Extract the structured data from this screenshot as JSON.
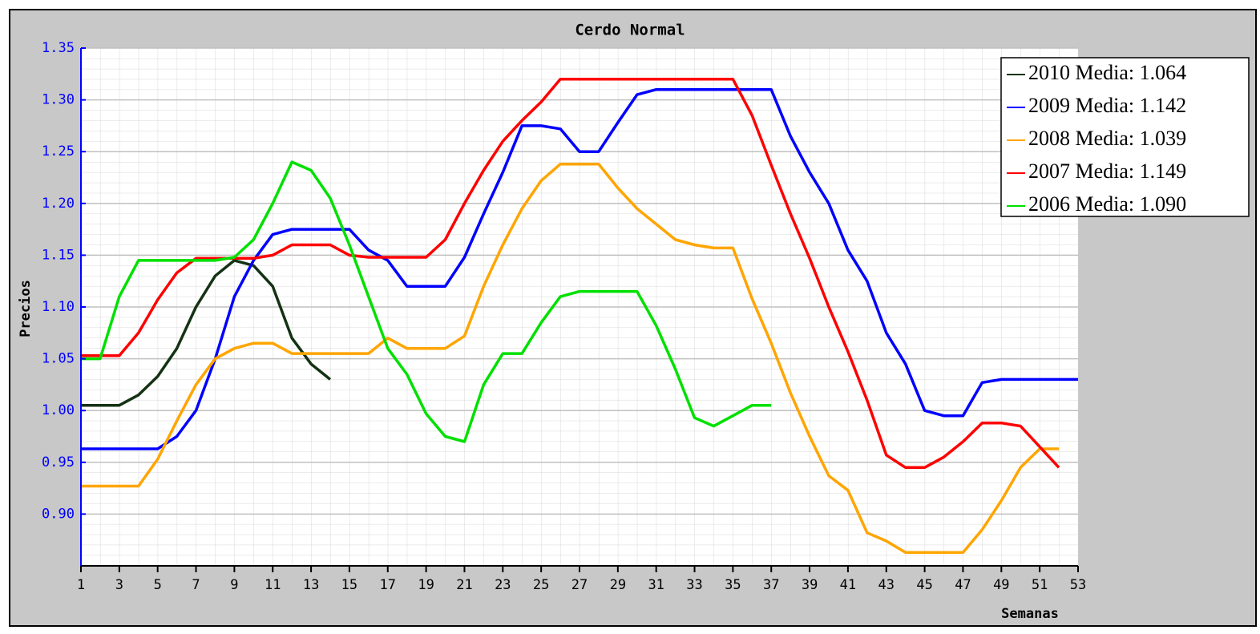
{
  "chart_data": {
    "type": "line",
    "title": "Cerdo Normal",
    "x_label": "Semanas",
    "y_label": "Precios",
    "x": [
      1,
      2,
      3,
      4,
      5,
      6,
      7,
      8,
      9,
      10,
      11,
      12,
      13,
      14,
      15,
      16,
      17,
      18,
      19,
      20,
      21,
      22,
      23,
      24,
      25,
      26,
      27,
      28,
      29,
      30,
      31,
      32,
      33,
      34,
      35,
      36,
      37,
      38,
      39,
      40,
      41,
      42,
      43,
      44,
      45,
      46,
      47,
      48,
      49,
      50,
      51,
      52,
      53
    ],
    "xlim": [
      1,
      53
    ],
    "xticks": [
      1,
      3,
      5,
      7,
      9,
      11,
      13,
      15,
      17,
      19,
      21,
      23,
      25,
      27,
      29,
      31,
      33,
      35,
      37,
      39,
      41,
      43,
      45,
      47,
      49,
      51,
      53
    ],
    "ylim": [
      0.85,
      1.35
    ],
    "yticks": [
      {
        "value": 0.9,
        "label": "0.90"
      },
      0.95,
      {
        "value": 1.0,
        "label": "1.00"
      },
      1.05,
      {
        "value": 1.1,
        "label": "1.10"
      },
      1.15,
      {
        "value": 1.2,
        "label": "1.20"
      },
      1.25,
      {
        "value": 1.3,
        "label": "1.30"
      },
      1.35
    ],
    "grid": true,
    "legend": "upper right",
    "series": [
      {
        "name": "2010 Media: 1.064",
        "color": "#143214",
        "values": [
          1.005,
          1.005,
          1.005,
          1.015,
          1.033,
          1.06,
          1.1,
          1.13,
          1.145,
          1.14,
          1.12,
          1.07,
          1.045,
          1.03,
          null,
          null,
          null,
          null,
          null,
          null,
          null,
          null,
          null,
          null,
          null,
          null,
          null,
          null,
          null,
          null,
          null,
          null,
          null,
          null,
          null,
          null,
          null,
          null,
          null,
          null,
          null,
          null,
          null,
          null,
          null,
          null,
          null,
          null,
          null,
          null,
          null,
          null,
          null
        ]
      },
      {
        "name": "2009 Media: 1.142",
        "color": "#0000ff",
        "values": [
          0.963,
          0.963,
          0.963,
          0.963,
          0.963,
          0.975,
          1.0,
          1.05,
          1.11,
          1.145,
          1.17,
          1.175,
          1.175,
          1.175,
          1.175,
          1.155,
          1.145,
          1.12,
          1.12,
          1.12,
          1.148,
          1.19,
          1.23,
          1.275,
          1.275,
          1.272,
          1.25,
          1.25,
          1.278,
          1.305,
          1.31,
          1.31,
          1.31,
          1.31,
          1.31,
          1.31,
          1.31,
          1.265,
          1.23,
          1.2,
          1.155,
          1.125,
          1.075,
          1.045,
          1.0,
          0.995,
          0.995,
          1.027,
          1.03,
          1.03,
          1.03,
          1.03,
          1.03
        ]
      },
      {
        "name": "2008 Media: 1.039",
        "color": "#ffa500",
        "values": [
          0.927,
          0.927,
          0.927,
          0.927,
          0.953,
          0.99,
          1.025,
          1.05,
          1.06,
          1.065,
          1.065,
          1.055,
          1.055,
          1.055,
          1.055,
          1.055,
          1.07,
          1.06,
          1.06,
          1.06,
          1.072,
          1.12,
          1.16,
          1.195,
          1.222,
          1.238,
          1.238,
          1.238,
          1.215,
          1.195,
          1.18,
          1.165,
          1.16,
          1.157,
          1.157,
          1.108,
          1.065,
          1.017,
          0.975,
          0.937,
          0.923,
          0.882,
          0.874,
          0.863,
          0.863,
          0.863,
          0.863,
          0.885,
          0.913,
          0.945,
          0.963,
          0.963,
          null
        ]
      },
      {
        "name": "2007 Media: 1.149",
        "color": "#ff0000",
        "values": [
          1.053,
          1.053,
          1.053,
          1.075,
          1.107,
          1.133,
          1.147,
          1.147,
          1.147,
          1.147,
          1.15,
          1.16,
          1.16,
          1.16,
          1.15,
          1.148,
          1.148,
          1.148,
          1.148,
          1.165,
          1.2,
          1.232,
          1.26,
          1.28,
          1.298,
          1.32,
          1.32,
          1.32,
          1.32,
          1.32,
          1.32,
          1.32,
          1.32,
          1.32,
          1.32,
          1.285,
          1.237,
          1.19,
          1.147,
          1.1,
          1.057,
          1.01,
          0.957,
          0.945,
          0.945,
          0.955,
          0.97,
          0.988,
          0.988,
          0.985,
          0.965,
          0.945,
          null
        ]
      },
      {
        "name": "2006 Media: 1.090",
        "color": "#00e000",
        "values": [
          1.05,
          1.05,
          1.11,
          1.145,
          1.145,
          1.145,
          1.145,
          1.145,
          1.148,
          1.165,
          1.2,
          1.24,
          1.232,
          1.205,
          1.16,
          1.11,
          1.06,
          1.035,
          0.997,
          0.975,
          0.97,
          1.025,
          1.055,
          1.055,
          1.085,
          1.11,
          1.115,
          1.115,
          1.115,
          1.115,
          1.082,
          1.04,
          0.993,
          0.985,
          0.995,
          1.005,
          1.005,
          null,
          null,
          null,
          null,
          null,
          null,
          null,
          null,
          null,
          null,
          null,
          null,
          null,
          null,
          null,
          null
        ]
      }
    ]
  }
}
